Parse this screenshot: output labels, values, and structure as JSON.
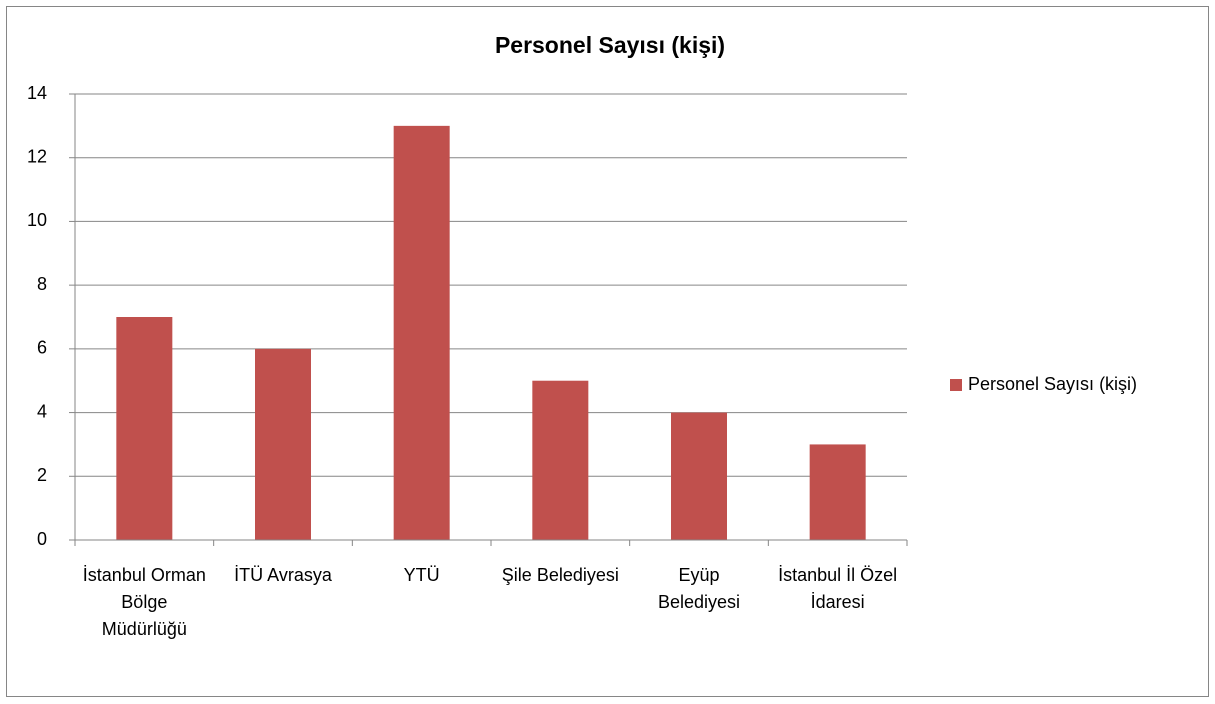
{
  "chart_data": {
    "type": "bar",
    "title": "Personel Sayısı (kişi)",
    "categories": [
      "İstanbul Orman Bölge Müdürlüğü",
      "İTÜ Avrasya",
      "YTÜ",
      "Şile Belediyesi",
      "Eyüp Belediyesi",
      "İstanbul İl Özel İdaresi"
    ],
    "series": [
      {
        "name": "Personel Sayısı (kişi)",
        "color": "#c0504d",
        "values": [
          7,
          6,
          13,
          5,
          4,
          3
        ]
      }
    ],
    "ylim": [
      0,
      14
    ],
    "yticks": [
      0,
      2,
      4,
      6,
      8,
      10,
      12,
      14
    ],
    "grid": true,
    "legend": "right"
  }
}
